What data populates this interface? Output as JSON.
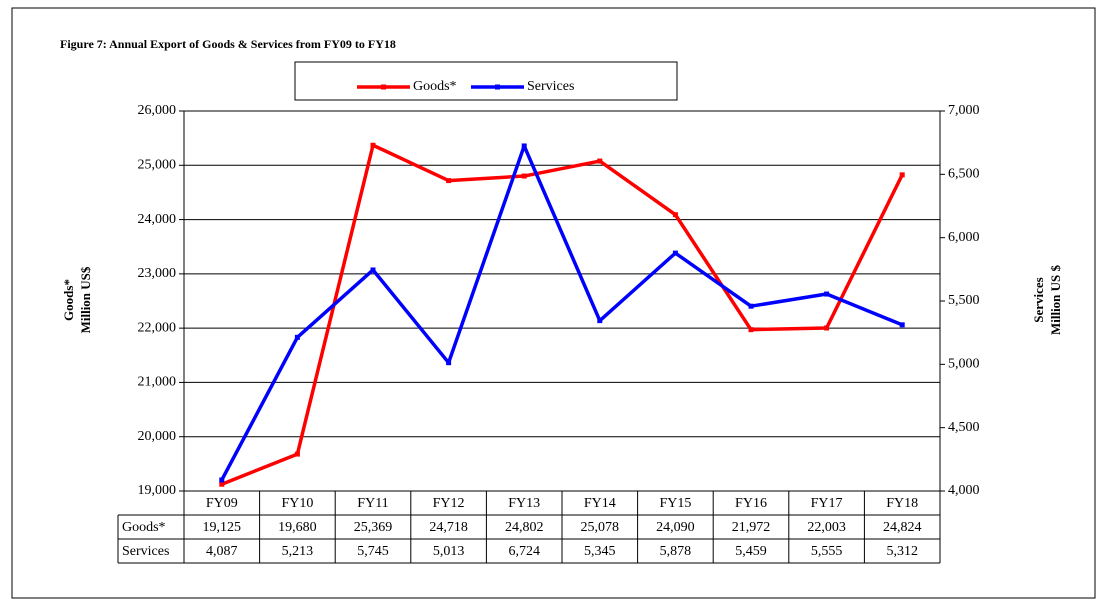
{
  "chart_data": {
    "type": "line",
    "title": "Figure 7: Annual Export of Goods & Services from FY09 to FY18",
    "ylabel": [
      "Goods*",
      "Million US$"
    ],
    "y2label": [
      "Services",
      "Million US $"
    ],
    "categories": [
      "FY09",
      "FY10",
      "FY11",
      "FY12",
      "FY13",
      "FY14",
      "FY15",
      "FY16",
      "FY17",
      "FY18"
    ],
    "series": [
      {
        "name": "Goods*",
        "color": "#ff0000",
        "axis": "y",
        "values": [
          19125,
          19680,
          25369,
          24718,
          24802,
          25078,
          24090,
          21972,
          22003,
          24824
        ],
        "value_labels": [
          "19,125",
          "19,680",
          "25,369",
          "24,718",
          "24,802",
          "25,078",
          "24,090",
          "21,972",
          "22,003",
          "24,824"
        ]
      },
      {
        "name": "Services",
        "color": "#0000ff",
        "axis": "y2",
        "values": [
          4087,
          5213,
          5745,
          5013,
          6724,
          5345,
          5878,
          5459,
          5555,
          5312
        ],
        "value_labels": [
          "4,087",
          "5,213",
          "5,745",
          "5,013",
          "6,724",
          "5,345",
          "5,878",
          "5,459",
          "5,555",
          "5,312"
        ]
      }
    ],
    "ylim": [
      19000,
      26000
    ],
    "yticks": [
      {
        "value": 19000,
        "label": "19,000"
      },
      {
        "value": 20000,
        "label": "20,000"
      },
      {
        "value": 21000,
        "label": "21,000"
      },
      {
        "value": 22000,
        "label": "22,000"
      },
      {
        "value": 23000,
        "label": "23,000"
      },
      {
        "value": 24000,
        "label": "24,000"
      },
      {
        "value": 25000,
        "label": "25,000"
      },
      {
        "value": 26000,
        "label": "26,000"
      }
    ],
    "y2lim": [
      4000,
      7000
    ],
    "y2ticks": [
      {
        "value": 4000,
        "label": "4,000"
      },
      {
        "value": 4500,
        "label": "4,500"
      },
      {
        "value": 5000,
        "label": "5,000"
      },
      {
        "value": 5500,
        "label": "5,500"
      },
      {
        "value": 6000,
        "label": "6,000"
      },
      {
        "value": 6500,
        "label": "6,500"
      },
      {
        "value": 7000,
        "label": "7,000"
      }
    ],
    "grid": true,
    "legend": "top"
  }
}
